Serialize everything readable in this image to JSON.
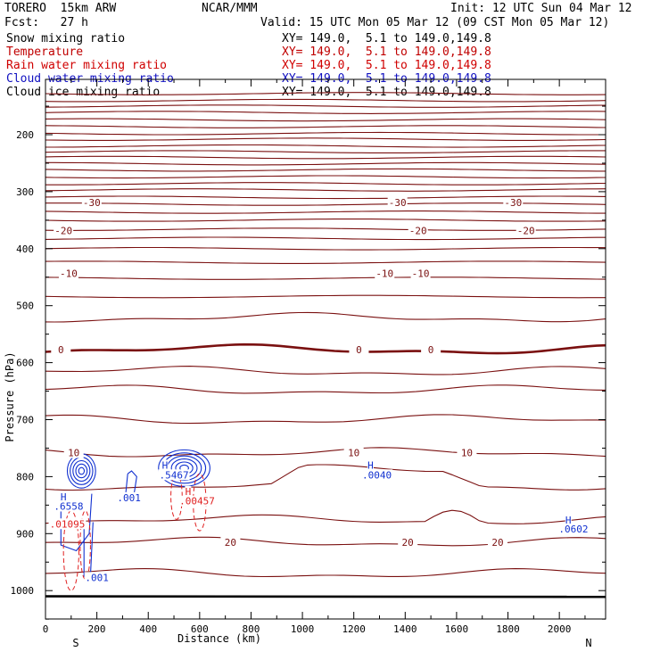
{
  "header": {
    "model": "TORERO  15km ARW",
    "org": "NCAR/MMM",
    "init": "Init: 12 UTC Sun 04 Mar 12",
    "fcst": "Fcst:   27 h",
    "valid": "Valid: 15 UTC Mon 05 Mar 12 (09 CST Mon 05 Mar 12)"
  },
  "legend": [
    {
      "label": "Snow mixing ratio",
      "xy": "XY= 149.0,  5.1 to 149.0,149.8",
      "color": "#000000"
    },
    {
      "label": "Temperature",
      "xy": "XY= 149.0,  5.1 to 149.0,149.8",
      "color": "#c00000"
    },
    {
      "label": "Rain water mixing ratio",
      "xy": "XY= 149.0,  5.1 to 149.0,149.8",
      "color": "#d00000"
    },
    {
      "label": "Cloud water mixing ratio",
      "xy": "XY= 149.0,  5.1 to 149.0,149.8",
      "color": "#1010c0"
    },
    {
      "label": "Cloud ice mixing ratio",
      "xy": "XY= 149.0,  5.1 to 149.0,149.8",
      "color": "#000000"
    }
  ],
  "colors": {
    "temperature": "#7a1010",
    "rain": "#e02020",
    "cloud_water": "#1030d0",
    "ground": "#000000"
  },
  "chart_data": {
    "type": "contour-cross-section",
    "xlabel": "Distance (km)",
    "ylabel": "Pressure (hPa)",
    "xlim": [
      0,
      2180
    ],
    "ylim": [
      1050,
      100
    ],
    "x_ticks": [
      0,
      200,
      400,
      600,
      800,
      1000,
      1200,
      1400,
      1600,
      1800,
      2000
    ],
    "y_ticks": [
      200,
      300,
      400,
      500,
      600,
      700,
      800,
      900,
      1000
    ],
    "x_ends": {
      "left": "S",
      "right": "N"
    },
    "temperature_isotherms": [
      {
        "label": "-30",
        "level_hpa": 319,
        "label_x_km": [
          180,
          1370,
          1820
        ]
      },
      {
        "label": "-20",
        "level_hpa": 368,
        "label_x_km": [
          70,
          1450,
          1870
        ]
      },
      {
        "label": "-10",
        "level_hpa": 443,
        "label_x_km": [
          90,
          1320,
          1460
        ]
      },
      {
        "label": "0",
        "level_hpa": 577,
        "label_x_km": [
          60,
          1220,
          1500
        ]
      },
      {
        "label": "10",
        "level_hpa": 758,
        "label_x_km": [
          110,
          1200,
          1640
        ]
      },
      {
        "label": "20",
        "level_hpa": 915,
        "label_x_km": [
          720,
          1410,
          1760
        ]
      }
    ],
    "extrema_labels": [
      {
        "text": "H",
        "x_km": 70,
        "p_hpa": 842,
        "series": "cloud_water"
      },
      {
        "text": ".6558",
        "x_km": 90,
        "p_hpa": 858,
        "series": "cloud_water"
      },
      {
        "text": ".01095",
        "x_km": 85,
        "p_hpa": 889,
        "series": "rain"
      },
      {
        "text": ".001",
        "x_km": 200,
        "p_hpa": 983,
        "series": "cloud_water"
      },
      {
        "text": ".001",
        "x_km": 325,
        "p_hpa": 843,
        "series": "cloud_water"
      },
      {
        "text": "H",
        "x_km": 465,
        "p_hpa": 786,
        "series": "cloud_water"
      },
      {
        "text": ".5467",
        "x_km": 500,
        "p_hpa": 803,
        "series": "cloud_water"
      },
      {
        "text": "H",
        "x_km": 555,
        "p_hpa": 832,
        "series": "rain"
      },
      {
        "text": ".00457",
        "x_km": 590,
        "p_hpa": 849,
        "series": "rain"
      },
      {
        "text": "H",
        "x_km": 1265,
        "p_hpa": 786,
        "series": "cloud_water"
      },
      {
        "text": ".0040",
        "x_km": 1290,
        "p_hpa": 803,
        "series": "cloud_water"
      },
      {
        "text": "H",
        "x_km": 2035,
        "p_hpa": 882,
        "series": "cloud_water"
      },
      {
        "text": ".0602",
        "x_km": 2055,
        "p_hpa": 898,
        "series": "cloud_water"
      }
    ]
  }
}
